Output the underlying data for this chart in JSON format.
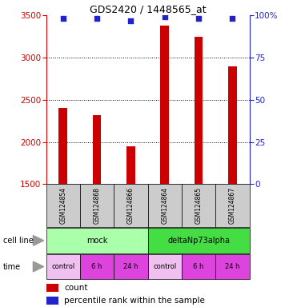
{
  "title": "GDS2420 / 1448565_at",
  "samples": [
    "GSM124854",
    "GSM124868",
    "GSM124866",
    "GSM124864",
    "GSM124865",
    "GSM124867"
  ],
  "counts": [
    2400,
    2320,
    1950,
    3380,
    3250,
    2900
  ],
  "percentile_ranks": [
    98,
    98,
    97,
    99,
    98,
    98
  ],
  "ylim_left": [
    1500,
    3500
  ],
  "ylim_right": [
    0,
    100
  ],
  "yticks_left": [
    1500,
    2000,
    2500,
    3000,
    3500
  ],
  "yticks_right": [
    0,
    25,
    50,
    75,
    100
  ],
  "bar_color": "#cc0000",
  "dot_color": "#2222cc",
  "cell_line_groups": [
    {
      "label": "mock",
      "indices": [
        0,
        1,
        2
      ],
      "color": "#aaffaa"
    },
    {
      "label": "deltaNp73alpha",
      "indices": [
        3,
        4,
        5
      ],
      "color": "#44dd44"
    }
  ],
  "time_labels": [
    "control",
    "6 h",
    "24 h",
    "control",
    "6 h",
    "24 h"
  ],
  "time_colors": [
    "#f0c0f0",
    "#dd44dd",
    "#dd44dd",
    "#f0c0f0",
    "#dd44dd",
    "#dd44dd"
  ],
  "cell_line_label": "cell line",
  "time_label": "time",
  "legend_count": "count",
  "legend_pct": "percentile rank within the sample",
  "bar_width": 0.25,
  "sample_box_color": "#cccccc",
  "left_axis_color": "#cc0000",
  "right_axis_color": "#2222cc",
  "grid_color": "#000000"
}
